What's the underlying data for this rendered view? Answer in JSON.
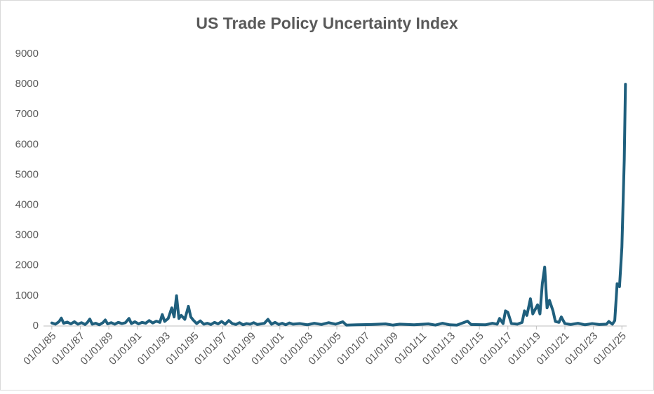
{
  "chart_data": {
    "type": "line",
    "title": "US Trade Policy Uncertainty Index",
    "color": "#1f5f7d",
    "xlim": [
      "06/01/84",
      "05/01/25"
    ],
    "xticks": [
      "01/01/85",
      "01/01/87",
      "01/01/89",
      "01/01/91",
      "01/01/93",
      "01/01/95",
      "01/01/97",
      "01/01/99",
      "01/01/01",
      "01/01/03",
      "01/01/05",
      "01/01/07",
      "01/01/09",
      "01/01/11",
      "01/01/13",
      "01/01/15",
      "01/01/17",
      "01/01/19",
      "01/01/21",
      "01/01/23",
      "01/01/25"
    ],
    "ylim": [
      0,
      9000
    ],
    "yticks": [
      0,
      1000,
      2000,
      3000,
      4000,
      5000,
      6000,
      7000,
      8000,
      9000
    ],
    "grid": false,
    "x": [
      "01/01/85",
      "04/01/85",
      "07/01/85",
      "09/01/85",
      "11/01/85",
      "02/01/86",
      "05/01/86",
      "08/01/86",
      "11/01/86",
      "02/01/87",
      "05/01/87",
      "07/01/87",
      "09/01/87",
      "11/01/87",
      "02/01/88",
      "05/01/88",
      "08/01/88",
      "10/01/88",
      "12/01/88",
      "03/01/89",
      "06/01/89",
      "09/01/89",
      "12/01/89",
      "03/01/90",
      "06/01/90",
      "08/01/90",
      "11/01/90",
      "02/01/91",
      "05/01/91",
      "08/01/91",
      "11/01/91",
      "02/01/92",
      "05/01/92",
      "08/01/92",
      "10/01/92",
      "12/01/92",
      "03/01/93",
      "06/01/93",
      "08/01/93",
      "10/01/93",
      "12/01/93",
      "02/01/94",
      "05/01/94",
      "08/01/94",
      "10/01/94",
      "12/01/94",
      "03/01/95",
      "06/01/95",
      "09/01/95",
      "12/01/95",
      "03/01/96",
      "06/01/96",
      "09/01/96",
      "12/01/96",
      "03/01/97",
      "06/01/97",
      "09/01/97",
      "12/01/97",
      "03/01/98",
      "06/01/98",
      "09/01/98",
      "12/01/98",
      "03/01/99",
      "06/01/99",
      "09/01/99",
      "12/01/99",
      "03/01/00",
      "06/01/00",
      "09/01/00",
      "12/01/00",
      "03/01/01",
      "06/01/01",
      "09/01/01",
      "12/01/01",
      "06/01/02",
      "12/01/02",
      "06/01/03",
      "12/01/03",
      "06/01/04",
      "12/01/04",
      "06/01/05",
      "09/01/05",
      "06/01/06",
      "06/01/07",
      "06/01/08",
      "12/01/08",
      "06/01/09",
      "06/01/10",
      "06/01/11",
      "12/01/11",
      "06/01/12",
      "12/01/12",
      "06/01/13",
      "03/01/14",
      "06/01/14",
      "06/01/15",
      "12/01/15",
      "04/01/16",
      "06/01/16",
      "09/01/16",
      "11/01/16",
      "01/01/17",
      "04/01/17",
      "09/01/17",
      "01/01/18",
      "03/01/18",
      "05/01/18",
      "08/01/18",
      "10/01/18",
      "02/01/19",
      "04/01/19",
      "06/01/19",
      "08/01/19",
      "10/01/19",
      "12/01/19",
      "03/01/20",
      "05/01/20",
      "08/01/20",
      "10/01/20",
      "01/01/21",
      "06/01/21",
      "12/01/21",
      "06/01/22",
      "12/01/22",
      "06/01/23",
      "12/01/23",
      "02/01/24",
      "05/01/24",
      "07/01/24",
      "09/01/24",
      "11/01/24",
      "01/01/25",
      "03/01/25",
      "04/01/25"
    ],
    "values": [
      100,
      60,
      140,
      260,
      90,
      130,
      70,
      140,
      60,
      110,
      50,
      120,
      230,
      60,
      90,
      40,
      110,
      200,
      70,
      110,
      60,
      120,
      80,
      110,
      250,
      80,
      140,
      70,
      120,
      90,
      180,
      100,
      160,
      120,
      380,
      150,
      250,
      600,
      300,
      1000,
      250,
      350,
      220,
      650,
      300,
      200,
      80,
      170,
      60,
      90,
      50,
      120,
      70,
      150,
      60,
      180,
      80,
      50,
      110,
      40,
      80,
      60,
      110,
      50,
      70,
      90,
      220,
      60,
      120,
      50,
      90,
      40,
      100,
      60,
      80,
      40,
      90,
      50,
      110,
      60,
      140,
      30,
      40,
      50,
      70,
      30,
      60,
      40,
      70,
      30,
      90,
      40,
      30,
      160,
      50,
      40,
      90,
      60,
      250,
      80,
      500,
      450,
      80,
      60,
      120,
      500,
      350,
      900,
      400,
      700,
      400,
      1400,
      1950,
      600,
      850,
      500,
      150,
      120,
      300,
      80,
      50,
      90,
      40,
      80,
      50,
      60,
      150,
      60,
      180,
      1400,
      1300,
      2600,
      5500,
      8000
    ]
  }
}
